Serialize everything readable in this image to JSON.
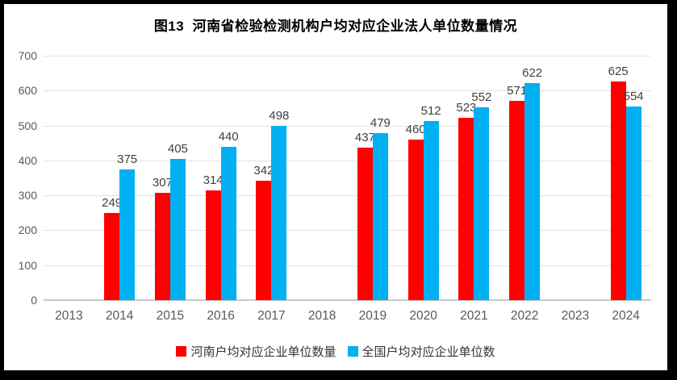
{
  "page": {
    "background_color": "#000000",
    "panel_background_color": "#FFFFFF"
  },
  "chart_data": {
    "type": "bar",
    "title": "图13  河南省检验检测机构户均对应企业法人单位数量情况",
    "categories": [
      "2013",
      "2014",
      "2015",
      "2016",
      "2017",
      "2018",
      "2019",
      "2020",
      "2021",
      "2022",
      "2023",
      "2024"
    ],
    "series": [
      {
        "name": "河南户均对应企业单位数量",
        "color": "#FF0000",
        "values": [
          null,
          249,
          307,
          314,
          342,
          null,
          437,
          460,
          523,
          571,
          null,
          625
        ]
      },
      {
        "name": "全国户均对应企业单位数",
        "color": "#00B0F0",
        "values": [
          null,
          375,
          405,
          440,
          498,
          null,
          479,
          512,
          552,
          622,
          null,
          554
        ]
      }
    ],
    "xlabel": "",
    "ylabel": "",
    "ylim": [
      0,
      700
    ],
    "yticks": [
      "0",
      "100",
      "200",
      "300",
      "400",
      "500",
      "600",
      "700"
    ],
    "grid": true,
    "data_labels": true,
    "legend_position": "bottom",
    "axis_label_color": "#595959",
    "data_label_color": "#3F3F3F",
    "gridline_color": "#E2E2E2",
    "axis_line_color": "#C9C9C9"
  }
}
